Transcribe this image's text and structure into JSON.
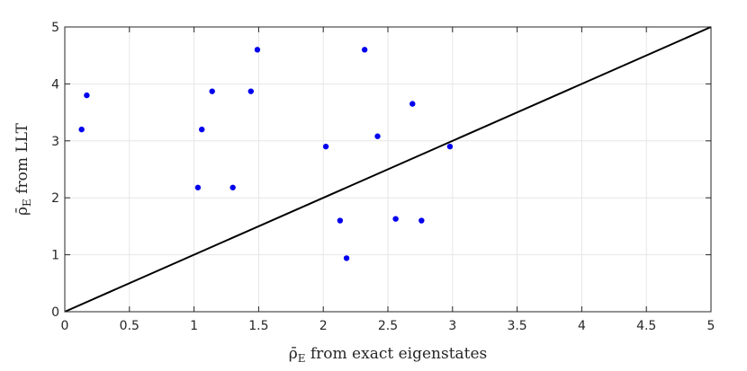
{
  "chart_data": {
    "type": "scatter",
    "title": "",
    "xlabel_symbol": "ρ̄",
    "xlabel_sub": "E",
    "xlabel_text": " from exact eigenstates",
    "ylabel_symbol": "ρ̄",
    "ylabel_sub": "E",
    "ylabel_text": " from LLT",
    "xlim": [
      0,
      5
    ],
    "ylim": [
      0,
      5
    ],
    "xticks": [
      "0",
      "0.5",
      "1",
      "1.5",
      "2",
      "2.5",
      "3",
      "3.5",
      "4",
      "4.5",
      "5"
    ],
    "yticks": [
      "0",
      "1",
      "2",
      "3",
      "4",
      "5"
    ],
    "grid": true,
    "marker_color": "#0000ee",
    "reference_line": {
      "x": [
        0,
        5
      ],
      "y": [
        0,
        5
      ],
      "color": "#000000"
    },
    "points": [
      {
        "x": 0.13,
        "y": 3.2
      },
      {
        "x": 0.17,
        "y": 3.8
      },
      {
        "x": 1.03,
        "y": 2.18
      },
      {
        "x": 1.06,
        "y": 3.2
      },
      {
        "x": 1.14,
        "y": 3.87
      },
      {
        "x": 1.3,
        "y": 2.18
      },
      {
        "x": 1.44,
        "y": 3.87
      },
      {
        "x": 1.49,
        "y": 4.6
      },
      {
        "x": 2.02,
        "y": 2.9
      },
      {
        "x": 2.13,
        "y": 1.6
      },
      {
        "x": 2.18,
        "y": 0.94
      },
      {
        "x": 2.32,
        "y": 4.6
      },
      {
        "x": 2.42,
        "y": 3.08
      },
      {
        "x": 2.56,
        "y": 1.63
      },
      {
        "x": 2.69,
        "y": 3.65
      },
      {
        "x": 2.76,
        "y": 1.6
      },
      {
        "x": 2.98,
        "y": 2.9
      }
    ]
  }
}
